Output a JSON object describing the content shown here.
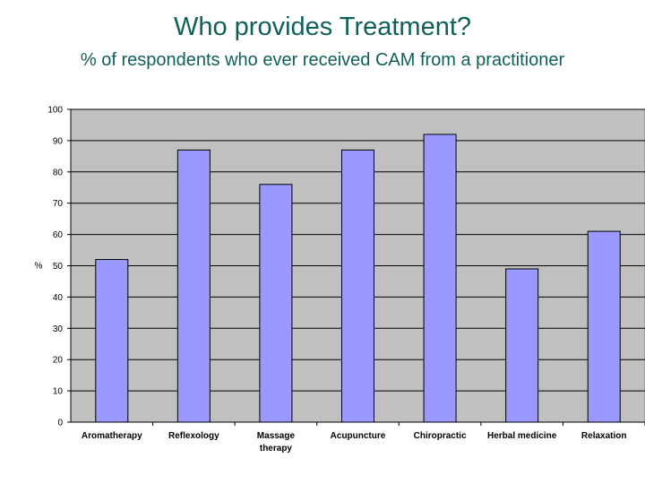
{
  "slide": {
    "title": "Who provides Treatment?",
    "subtitle": "% of respondents who ever received CAM from a practitioner"
  },
  "colors": {
    "title": "#0f5f5a",
    "plot_background": "#c0c0c0",
    "bar_fill": "#9999ff",
    "bar_stroke": "#000000",
    "gridline": "#000000"
  },
  "chart_data": {
    "type": "bar",
    "title": "",
    "xlabel": "",
    "ylabel": "%",
    "ylim": [
      0,
      100
    ],
    "yticks": [
      0,
      10,
      20,
      30,
      40,
      50,
      60,
      70,
      80,
      90,
      100
    ],
    "grid": true,
    "legend": "none",
    "categories": [
      [
        "Aromatherapy"
      ],
      [
        "Reflexology"
      ],
      [
        "Massage",
        "therapy"
      ],
      [
        "Acupuncture"
      ],
      [
        "Chiropractic"
      ],
      [
        "Herbal medicine"
      ],
      [
        "Relaxation"
      ]
    ],
    "values": [
      52,
      87,
      76,
      87,
      92,
      49,
      61
    ]
  }
}
